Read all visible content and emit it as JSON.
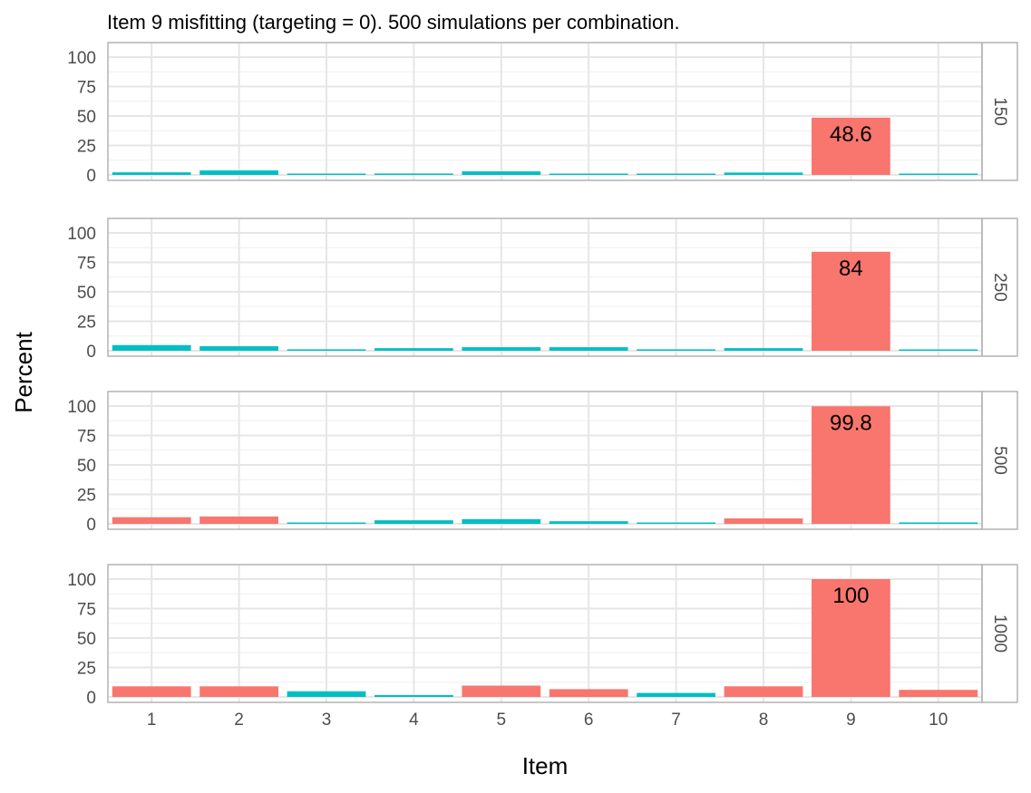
{
  "title": "Item 9 misfitting (targeting = 0). 500 simulations per combination.",
  "colors": {
    "flagged": "#F8766D",
    "not_flagged": "#00BFC4",
    "panel_border": "#B3B3B3",
    "grid_major": "#E6E6E6",
    "grid_minor": "#F2F2F2",
    "tick_text": "#4D4D4D",
    "text": "#000000"
  },
  "chart_data": {
    "type": "bar",
    "title": "Item 9 misfitting (targeting = 0). 500 simulations per combination.",
    "xlabel": "Item",
    "ylabel": "Percent",
    "categories": [
      "1",
      "2",
      "3",
      "4",
      "5",
      "6",
      "7",
      "8",
      "9",
      "10"
    ],
    "ylim": [
      0,
      100
    ],
    "yticks": [
      0,
      25,
      50,
      75,
      100
    ],
    "grid": true,
    "facet": "rows",
    "panels": [
      {
        "strip": "150",
        "values": [
          2.2,
          3.8,
          0.4,
          1.2,
          3.0,
          0.4,
          0.4,
          2.0,
          48.6,
          0.4
        ],
        "flagged": [
          false,
          false,
          false,
          false,
          false,
          false,
          false,
          false,
          true,
          false
        ],
        "labels": [
          "",
          "",
          "",
          "",
          "",
          "",
          "",
          "",
          "48.6",
          ""
        ]
      },
      {
        "strip": "250",
        "values": [
          4.8,
          3.8,
          1.2,
          2.2,
          3.0,
          3.0,
          1.2,
          2.2,
          84,
          0.6
        ],
        "flagged": [
          false,
          false,
          false,
          false,
          false,
          false,
          false,
          false,
          true,
          false
        ],
        "labels": [
          "",
          "",
          "",
          "",
          "",
          "",
          "",
          "",
          "84",
          ""
        ]
      },
      {
        "strip": "500",
        "values": [
          5.6,
          6.2,
          1.0,
          3.0,
          4.0,
          2.2,
          1.0,
          4.6,
          99.8,
          1.2
        ],
        "flagged": [
          true,
          true,
          false,
          false,
          false,
          false,
          false,
          true,
          true,
          false
        ],
        "labels": [
          "",
          "",
          "",
          "",
          "",
          "",
          "",
          "",
          "99.8",
          ""
        ]
      },
      {
        "strip": "1000",
        "values": [
          9.0,
          9.0,
          4.8,
          1.6,
          9.6,
          6.6,
          3.4,
          9.0,
          100,
          6.0
        ],
        "flagged": [
          true,
          true,
          false,
          false,
          true,
          true,
          false,
          true,
          true,
          true
        ],
        "labels": [
          "",
          "",
          "",
          "",
          "",
          "",
          "",
          "",
          "100",
          ""
        ]
      }
    ]
  }
}
